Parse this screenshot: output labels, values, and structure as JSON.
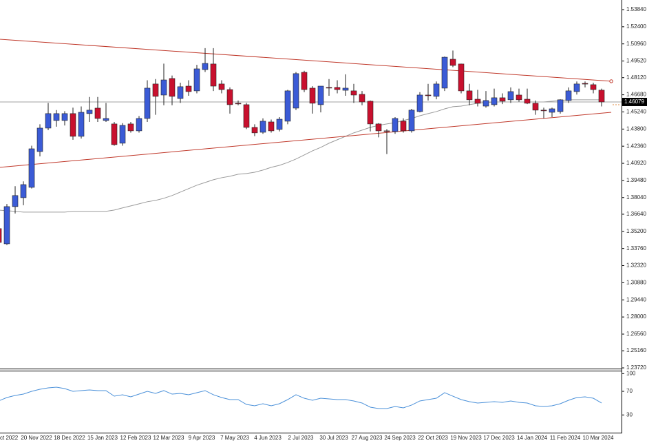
{
  "chart_data": [
    {
      "type": "candlestick",
      "categories": [
        "ct 2022",
        null,
        null,
        null,
        "20 Nov 2022",
        null,
        null,
        null,
        "18 Dec 2022",
        null,
        null,
        null,
        "15 Jan 2023",
        null,
        null,
        null,
        "12 Feb 2023",
        null,
        null,
        null,
        "12 Mar 2023",
        null,
        null,
        null,
        "9 Apr 2023",
        null,
        null,
        null,
        "7 May 2023",
        null,
        null,
        null,
        "4 Jun 2023",
        null,
        null,
        null,
        "2 Jul 2023",
        null,
        null,
        null,
        "30 Jul 2023",
        null,
        null,
        null,
        "27 Aug 2023",
        null,
        null,
        null,
        "24 Sep 2023",
        null,
        null,
        null,
        "22 Oct 2023",
        null,
        null,
        null,
        "19 Nov 2023",
        null,
        null,
        null,
        "17 Dec 2023",
        null,
        null,
        null,
        "14 Jan 2024",
        null,
        null,
        null,
        "11 Feb 2024",
        null,
        null,
        null,
        "10 Mar 2024",
        null
      ],
      "open": [
        1.3543,
        1.3415,
        1.3728,
        1.3803,
        1.389,
        1.4191,
        1.4388,
        1.4452,
        1.4452,
        1.451,
        1.4319,
        1.451,
        1.4556,
        1.4452,
        1.4423,
        1.4261,
        1.4423,
        1.4365,
        1.4469,
        1.4759,
        1.4666,
        1.4805,
        1.4637,
        1.4741,
        1.4701,
        1.488,
        1.4927,
        1.4759,
        1.4712,
        1.4597,
        1.4585,
        1.4394,
        1.4353,
        1.444,
        1.4377,
        1.4446,
        1.4556,
        1.4857,
        1.4724,
        1.4585,
        1.473,
        1.473,
        1.4706,
        1.4701,
        1.4672,
        1.4614,
        1.4423,
        1.4365,
        1.4359,
        1.4446,
        1.4365,
        1.4527,
        1.4666,
        1.4655,
        1.4724,
        1.4967,
        1.4927,
        1.4701,
        1.4631,
        1.4573,
        1.4585,
        1.4643,
        1.4626,
        1.4666,
        1.4631,
        1.4597,
        1.4539,
        1.4521,
        1.4527,
        1.462,
        1.4695,
        1.4764,
        1.4753,
        1.4707
      ],
      "high": [
        1.356,
        1.375,
        1.39,
        1.394,
        1.424,
        1.442,
        1.46,
        1.454,
        1.453,
        1.456,
        1.457,
        1.465,
        1.465,
        1.46,
        1.444,
        1.443,
        1.444,
        1.449,
        1.479,
        1.48,
        1.493,
        1.483,
        1.477,
        1.479,
        1.492,
        1.506,
        1.506,
        1.479,
        1.473,
        1.462,
        1.46,
        1.442,
        1.447,
        1.446,
        1.448,
        1.471,
        1.486,
        1.487,
        1.474,
        1.474,
        1.48,
        1.479,
        1.484,
        1.476,
        1.47,
        1.462,
        1.443,
        1.438,
        1.448,
        1.447,
        1.455,
        1.469,
        1.476,
        1.478,
        1.499,
        1.504,
        1.493,
        1.476,
        1.471,
        1.47,
        1.472,
        1.468,
        1.473,
        1.472,
        1.472,
        1.462,
        1.456,
        1.456,
        1.463,
        1.473,
        1.478,
        1.478,
        1.477,
        1.472
      ],
      "low": [
        1.3405,
        1.3405,
        1.367,
        1.374,
        1.388,
        1.415,
        1.437,
        1.44,
        1.441,
        1.429,
        1.43,
        1.444,
        1.444,
        1.444,
        1.424,
        1.424,
        1.435,
        1.435,
        1.444,
        1.45,
        1.458,
        1.458,
        1.46,
        1.466,
        1.468,
        1.486,
        1.47,
        1.468,
        1.451,
        1.458,
        1.438,
        1.432,
        1.434,
        1.435,
        1.436,
        1.442,
        1.454,
        1.469,
        1.451,
        1.452,
        1.466,
        1.468,
        1.466,
        1.46,
        1.458,
        1.436,
        1.431,
        1.417,
        1.434,
        1.435,
        1.435,
        1.452,
        1.462,
        1.463,
        1.47,
        1.49,
        1.468,
        1.458,
        1.457,
        1.456,
        1.457,
        1.459,
        1.46,
        1.461,
        1.459,
        1.45,
        1.447,
        1.448,
        1.451,
        1.46,
        1.467,
        1.473,
        1.468,
        1.457
      ],
      "close": [
        1.3427,
        1.3728,
        1.3821,
        1.3913,
        1.4214,
        1.4388,
        1.451,
        1.451,
        1.451,
        1.4319,
        1.4521,
        1.4539,
        1.4469,
        1.4469,
        1.4249,
        1.4411,
        1.4365,
        1.4469,
        1.4724,
        1.4655,
        1.4793,
        1.4655,
        1.4736,
        1.4695,
        1.4886,
        1.4932,
        1.4741,
        1.4712,
        1.4585,
        1.4595,
        1.4394,
        1.4348,
        1.4446,
        1.4365,
        1.4463,
        1.4701,
        1.4846,
        1.4712,
        1.4597,
        1.4741,
        1.4728,
        1.4712,
        1.4724,
        1.4666,
        1.4608,
        1.4423,
        1.4365,
        1.4359,
        1.4469,
        1.4365,
        1.4539,
        1.4666,
        1.4664,
        1.4759,
        1.4984,
        1.4915,
        1.4701,
        1.4626,
        1.4597,
        1.462,
        1.4643,
        1.4614,
        1.4695,
        1.4626,
        1.4597,
        1.4539,
        1.4537,
        1.455,
        1.4626,
        1.4701,
        1.4759,
        1.4762,
        1.4712,
        1.4608
      ],
      "up_color": "#3b5bd6",
      "down_color": "#c8102e",
      "ylim": [
        1.2372,
        1.5465
      ],
      "yticks": [
        {
          "value": 1.5384,
          "label": "1.53840"
        },
        {
          "value": 1.524,
          "label": "1.52400"
        },
        {
          "value": 1.5096,
          "label": "1.50960"
        },
        {
          "value": 1.4952,
          "label": "1.49520"
        },
        {
          "value": 1.4812,
          "label": "1.48120"
        },
        {
          "value": 1.4668,
          "label": "1.46680"
        },
        {
          "value": 1.4524,
          "label": "1.45240"
        },
        {
          "value": 1.438,
          "label": "1.43800"
        },
        {
          "value": 1.4236,
          "label": "1.42360"
        },
        {
          "value": 1.4092,
          "label": "1.40920"
        },
        {
          "value": 1.3948,
          "label": "1.39480"
        },
        {
          "value": 1.3804,
          "label": "1.38040"
        },
        {
          "value": 1.3664,
          "label": "1.36640"
        },
        {
          "value": 1.352,
          "label": "1.35200"
        },
        {
          "value": 1.3376,
          "label": "1.33760"
        },
        {
          "value": 1.3232,
          "label": "1.32320"
        },
        {
          "value": 1.3088,
          "label": "1.30880"
        },
        {
          "value": 1.2944,
          "label": "1.29440"
        },
        {
          "value": 1.28,
          "label": "1.28000"
        },
        {
          "value": 1.2656,
          "label": "1.26560"
        },
        {
          "value": 1.2516,
          "label": "1.25160"
        },
        {
          "value": 1.2372,
          "label": "1.23720"
        }
      ],
      "moving_average": {
        "color": "#9a9a9a",
        "values": [
          1.3699,
          1.3693,
          1.3688,
          1.3682,
          1.3682,
          1.3682,
          1.3682,
          1.3682,
          1.3682,
          1.3688,
          1.3688,
          1.3688,
          1.3688,
          1.3688,
          1.3699,
          1.3717,
          1.3734,
          1.3751,
          1.3769,
          1.378,
          1.3798,
          1.3821,
          1.385,
          1.3879,
          1.3908,
          1.3931,
          1.3954,
          1.3971,
          1.3983,
          1.4,
          1.4006,
          1.4017,
          1.4035,
          1.4058,
          1.4075,
          1.4099,
          1.4128,
          1.4162,
          1.4197,
          1.4226,
          1.4261,
          1.429,
          1.4319,
          1.4348,
          1.4371,
          1.4394,
          1.4411,
          1.4423,
          1.4434,
          1.4452,
          1.4469,
          1.4492,
          1.451,
          1.4527,
          1.455,
          1.4568,
          1.4573,
          1.4585,
          1.4597,
          1.4602,
          1.4608,
          1.4608,
          1.4608,
          1.4608,
          1.4608,
          1.4608,
          1.4608,
          1.4614,
          1.462,
          1.4626,
          1.4626,
          1.4626,
          1.4626,
          1.4626
        ]
      },
      "trendlines": [
        {
          "color": "#c0392b",
          "x": [
            0.17,
            74.17
          ],
          "y": [
            1.5135,
            1.4782
          ]
        },
        {
          "color": "#c0392b",
          "x": [
            0.17,
            74.17
          ],
          "y": [
            1.4058,
            1.4521
          ]
        }
      ],
      "last_price": 1.46079
    },
    {
      "type": "line",
      "color": "#4a90d9",
      "values": [
        53.7,
        59.5,
        63.0,
        65.3,
        70.0,
        73.5,
        75.8,
        77.0,
        74.7,
        70.0,
        71.2,
        72.3,
        71.2,
        71.2,
        61.8,
        64.2,
        60.7,
        65.3,
        70.0,
        66.5,
        71.2,
        65.3,
        66.5,
        64.2,
        67.7,
        71.2,
        64.2,
        59.5,
        56.0,
        56.0,
        47.8,
        45.5,
        49.0,
        45.5,
        49.0,
        56.0,
        64.2,
        58.3,
        54.8,
        58.3,
        57.2,
        56.0,
        56.0,
        53.7,
        50.2,
        43.2,
        40.8,
        40.8,
        44.3,
        42.0,
        46.7,
        53.7,
        56.0,
        58.3,
        67.7,
        61.8,
        56.0,
        52.5,
        50.2,
        51.3,
        52.5,
        51.3,
        53.7,
        51.3,
        50.2,
        45.5,
        44.3,
        45.5,
        49.0,
        54.8,
        59.5,
        60.7,
        58.3,
        50.2
      ],
      "ylim": [
        0,
        105
      ],
      "yticks": [
        30,
        70,
        100
      ]
    }
  ]
}
